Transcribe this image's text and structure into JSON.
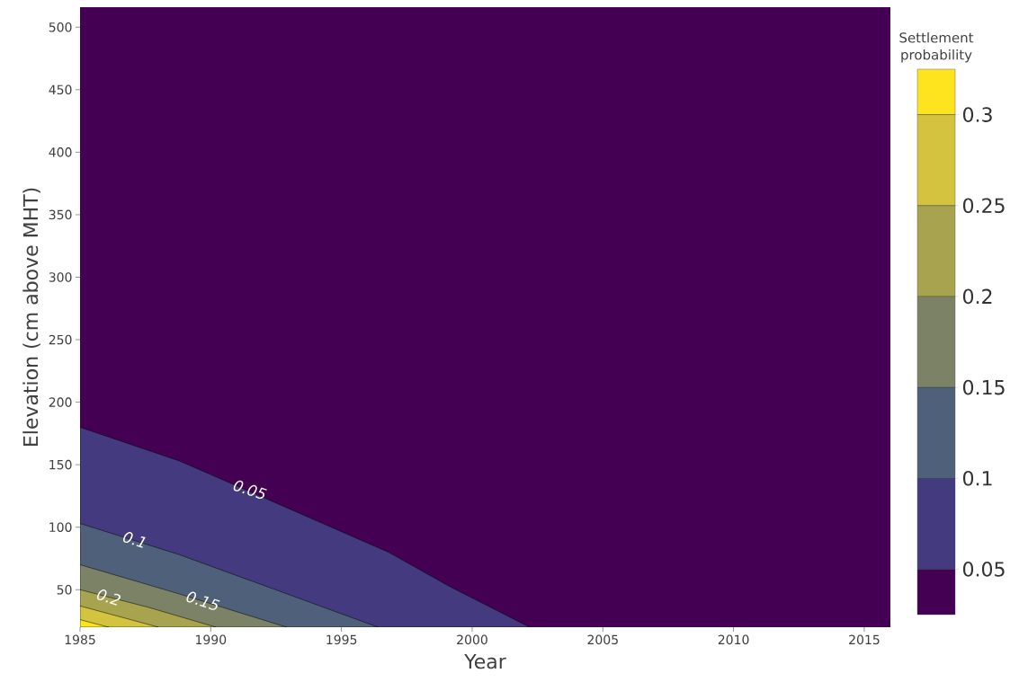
{
  "chart_data": {
    "type": "area",
    "xlabel": "Year",
    "ylabel": "Elevation (cm above MHT)",
    "clabel": "Settlement probability",
    "xlim": [
      1985,
      2016
    ],
    "ylim": [
      20,
      516
    ],
    "xticks": [
      1985,
      1990,
      1995,
      2000,
      2005,
      2010,
      2015
    ],
    "yticks": [
      50,
      100,
      150,
      200,
      250,
      300,
      350,
      400,
      450,
      500
    ],
    "clim": [
      0.025,
      0.325
    ],
    "cticks": [
      0.05,
      0.1,
      0.15,
      0.2,
      0.25,
      0.3
    ],
    "bands": [
      {
        "axis": "y",
        "from": 20,
        "to": 516,
        "color": "#440154"
      }
    ],
    "series": [
      {
        "color": "#433a7f",
        "x": [
          1985,
          1988.8,
          1992.1,
          1996.8,
          1999.1,
          2002.2
        ],
        "values": [
          180,
          153,
          123,
          80,
          53,
          20
        ]
      },
      {
        "color": "#4f607b",
        "x": [
          1985,
          1988.8,
          1993.0,
          1996.4
        ],
        "values": [
          103,
          78,
          46,
          20
        ]
      },
      {
        "color": "#7b8266",
        "x": [
          1985,
          1988.9,
          1992.9
        ],
        "values": [
          70,
          46,
          20
        ]
      },
      {
        "color": "#a8a34f",
        "x": [
          1985,
          1987.6,
          1990.2
        ],
        "values": [
          50,
          36,
          20
        ]
      },
      {
        "color": "#d4c33e",
        "x": [
          1985,
          1988.0
        ],
        "values": [
          37,
          20
        ]
      },
      {
        "color": "#fde41e",
        "x": [
          1985,
          1986.1
        ],
        "values": [
          26,
          20
        ]
      }
    ],
    "annotations": [
      {
        "text": "0.05",
        "x": 1991.5,
        "y": 130
      },
      {
        "text": "0.1",
        "x": 1987.1,
        "y": 90
      },
      {
        "text": "0.15",
        "x": 1989.7,
        "y": 41
      },
      {
        "text": "0.2",
        "x": 1986.1,
        "y": 44
      }
    ]
  }
}
